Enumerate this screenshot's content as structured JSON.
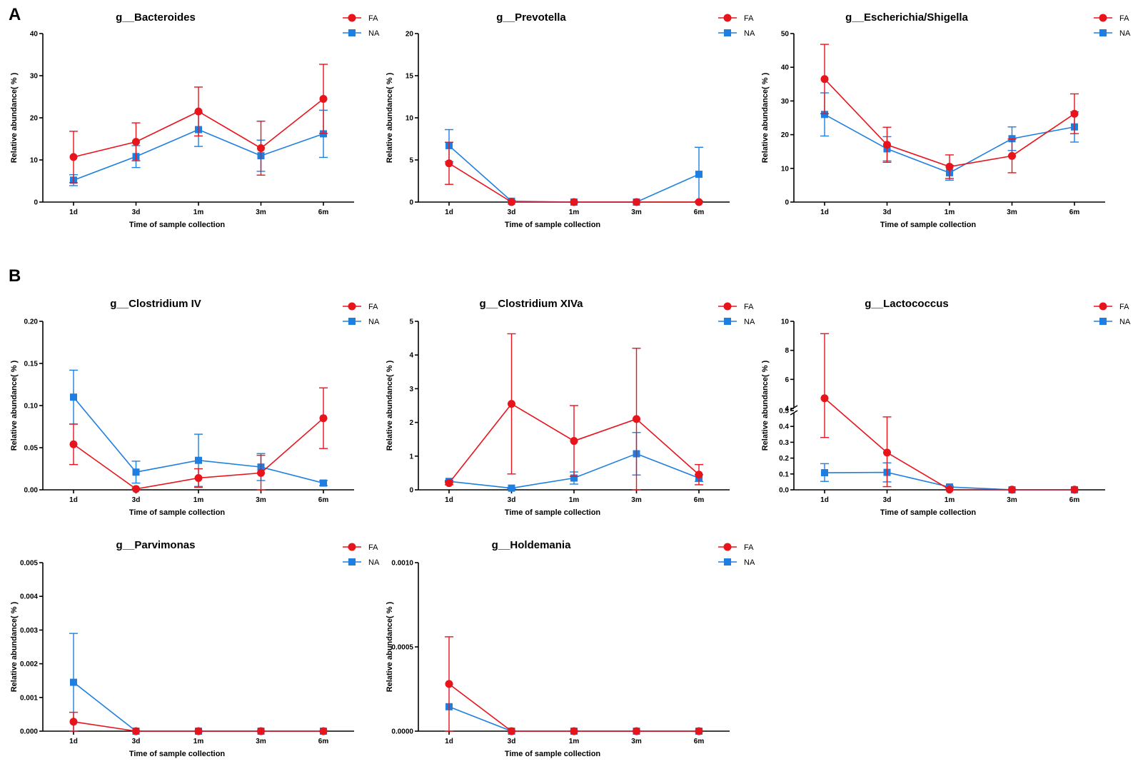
{
  "panel_letters": [
    "A",
    "B"
  ],
  "colors": {
    "FA": "#e8141c",
    "NA": "#1f7fe0"
  },
  "chart_data": [
    {
      "type": "line",
      "title": "g__Bacteroides",
      "xlabel": "Time of sample collection",
      "ylabel": "Relative abundance( % )",
      "categories": [
        "1d",
        "3d",
        "1m",
        "3m",
        "6m"
      ],
      "ylim": [
        0,
        40
      ],
      "yticks": [
        "0",
        "10",
        "20",
        "30",
        "40"
      ],
      "legend": "top-right",
      "series": [
        {
          "name": "FA",
          "values": [
            10.7,
            14.3,
            21.5,
            12.8,
            24.5
          ],
          "err": [
            6.1,
            4.5,
            5.8,
            6.4,
            8.2
          ]
        },
        {
          "name": "NA",
          "values": [
            5.2,
            10.8,
            17.2,
            11.0,
            16.2
          ],
          "err": [
            1.3,
            2.6,
            4.0,
            3.7,
            5.6
          ]
        }
      ]
    },
    {
      "type": "line",
      "title": "g__Prevotella",
      "xlabel": "Time of sample collection",
      "ylabel": "Relative abundance( % )",
      "categories": [
        "1d",
        "3d",
        "1m",
        "3m",
        "6m"
      ],
      "ylim": [
        0,
        20
      ],
      "yticks": [
        "0",
        "5",
        "10",
        "15",
        "20"
      ],
      "legend": "top-right",
      "series": [
        {
          "name": "FA",
          "values": [
            4.6,
            0.0,
            0.0,
            0.0,
            0.0
          ],
          "err": [
            2.5,
            0,
            0,
            0,
            0
          ]
        },
        {
          "name": "NA",
          "values": [
            6.7,
            0.1,
            0.0,
            0.0,
            3.3
          ],
          "err": [
            1.9,
            0.1,
            0,
            0,
            3.2
          ]
        }
      ]
    },
    {
      "type": "line",
      "title": "g__Escherichia/Shigella",
      "xlabel": "Time of sample collection",
      "ylabel": "Relative abundance( % )",
      "categories": [
        "1d",
        "3d",
        "1m",
        "3m",
        "6m"
      ],
      "ylim": [
        0,
        50
      ],
      "yticks": [
        "0",
        "10",
        "20",
        "30",
        "40",
        "50"
      ],
      "legend": "top-right",
      "series": [
        {
          "name": "FA",
          "values": [
            36.5,
            17.0,
            10.5,
            13.7,
            26.2
          ],
          "err": [
            10.3,
            5.2,
            3.5,
            5.0,
            5.9
          ]
        },
        {
          "name": "NA",
          "values": [
            26.0,
            15.8,
            8.7,
            18.8,
            22.3
          ],
          "err": [
            6.4,
            3.6,
            2.2,
            3.5,
            4.5
          ]
        }
      ]
    },
    {
      "type": "line",
      "title": "g__Clostridium IV",
      "xlabel": "Time of sample collection",
      "ylabel": "Relative abundance( % )",
      "categories": [
        "1d",
        "3d",
        "1m",
        "3m",
        "6m"
      ],
      "ylim": [
        0,
        0.2
      ],
      "yticks": [
        "0.00",
        "0.05",
        "0.10",
        "0.15",
        "0.20"
      ],
      "legend": "top-right",
      "series": [
        {
          "name": "FA",
          "values": [
            0.054,
            0.001,
            0.014,
            0.02,
            0.085
          ],
          "err": [
            0.024,
            0.001,
            0.011,
            0.021,
            0.036
          ]
        },
        {
          "name": "NA",
          "values": [
            0.11,
            0.021,
            0.035,
            0.027,
            0.008
          ],
          "err": [
            0.032,
            0.013,
            0.031,
            0.016,
            0.003
          ]
        }
      ]
    },
    {
      "type": "line",
      "title": "g__Clostridium XIVa",
      "xlabel": "Time of sample collection",
      "ylabel": "Relative abundance( % )",
      "categories": [
        "1d",
        "3d",
        "1m",
        "3m",
        "6m"
      ],
      "ylim": [
        0,
        5
      ],
      "yticks": [
        "0",
        "1",
        "2",
        "3",
        "4",
        "5"
      ],
      "legend": "top-right",
      "series": [
        {
          "name": "FA",
          "values": [
            0.2,
            2.55,
            1.45,
            2.1,
            0.45
          ],
          "err": [
            0.05,
            2.08,
            1.05,
            2.1,
            0.3
          ]
        },
        {
          "name": "NA",
          "values": [
            0.25,
            0.05,
            0.35,
            1.07,
            0.35
          ],
          "err": [
            0.03,
            0.02,
            0.18,
            0.63,
            0.1
          ]
        }
      ]
    },
    {
      "type": "line",
      "title": "g__Lactococcus",
      "xlabel": "Time of sample collection",
      "ylabel": "Relative abundance( % )",
      "categories": [
        "1d",
        "3d",
        "1m",
        "3m",
        "6m"
      ],
      "ylim": [
        0,
        10
      ],
      "axis_break": {
        "lower": [
          0,
          0.5
        ],
        "upper": [
          4,
          10
        ]
      },
      "yticks": [
        "0.0",
        "0.1",
        "0.2",
        "0.3",
        "0.4",
        "0.5",
        "4",
        "6",
        "8",
        "10"
      ],
      "legend": "top-right",
      "series": [
        {
          "name": "FA",
          "values": [
            4.7,
            0.235,
            0.002,
            0.001,
            0.001
          ],
          "err_low": [
            4.37,
            0.215,
            0,
            0,
            0
          ],
          "err_high": [
            4.45,
            0.225,
            0,
            0,
            0
          ]
        },
        {
          "name": "NA",
          "values": [
            0.108,
            0.11,
            0.018,
            0.0,
            0.0
          ],
          "err_low": [
            0.055,
            0.06,
            0.005,
            0,
            0
          ],
          "err_high": [
            0.057,
            0.06,
            0.005,
            0,
            0
          ]
        }
      ]
    },
    {
      "type": "line",
      "title": "g__Parvimonas",
      "xlabel": "Time of sample collection",
      "ylabel": "Relative abundance( % )",
      "categories": [
        "1d",
        "3d",
        "1m",
        "3m",
        "6m"
      ],
      "ylim": [
        0,
        0.005
      ],
      "yticks": [
        "0.000",
        "0.001",
        "0.002",
        "0.003",
        "0.004",
        "0.005"
      ],
      "legend": "top-right",
      "series": [
        {
          "name": "FA",
          "values": [
            0.00028,
            0.0,
            0.0,
            0.0,
            0.0
          ],
          "err": [
            0.00028,
            0,
            0,
            0,
            0
          ]
        },
        {
          "name": "NA",
          "values": [
            0.00145,
            0.0,
            0.0,
            0.0,
            0.0
          ],
          "err": [
            0.00145,
            0,
            0,
            0,
            0
          ]
        }
      ]
    },
    {
      "type": "line",
      "title": "g__Holdemania",
      "xlabel": "Time of sample collection",
      "ylabel": "Relative abundance( % )",
      "categories": [
        "1d",
        "3d",
        "1m",
        "3m",
        "6m"
      ],
      "ylim": [
        0,
        0.001
      ],
      "yticks": [
        "0.0000",
        "0.0005",
        "0.0010"
      ],
      "legend": "top-right",
      "series": [
        {
          "name": "FA",
          "values": [
            0.00028,
            0.0,
            0.0,
            0.0,
            0.0
          ],
          "err": [
            0.00028,
            0,
            0,
            0,
            0
          ]
        },
        {
          "name": "NA",
          "values": [
            0.000145,
            0.0,
            0.0,
            0.0,
            0.0
          ],
          "err": [
            0.0,
            0,
            0,
            0,
            0
          ]
        }
      ]
    }
  ]
}
